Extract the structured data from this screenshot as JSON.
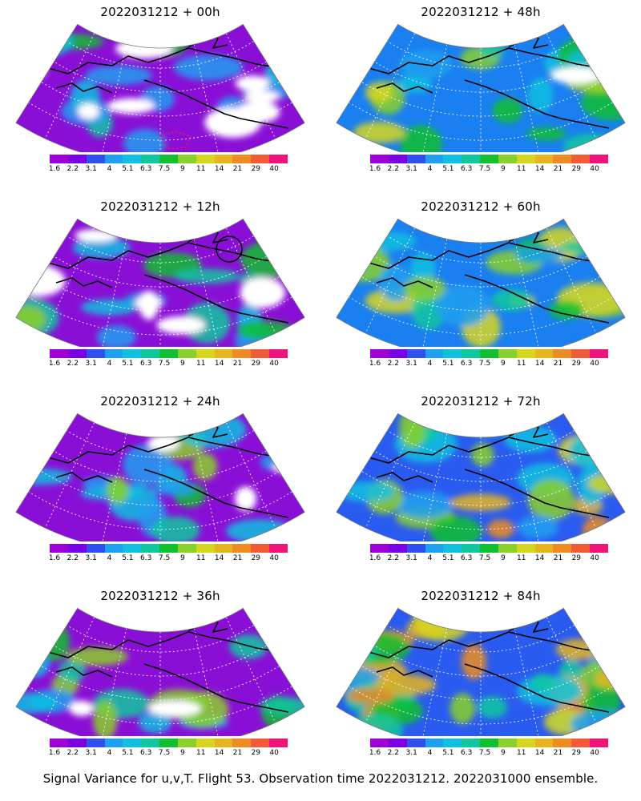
{
  "panels": [
    {
      "title": "2022031212 + 00h",
      "bg": "#8a0fd6",
      "blank": 0.24,
      "hot": 0.15,
      "marker": "dotted-contour"
    },
    {
      "title": "2022031212 + 48h",
      "bg": "#1a7ff0",
      "blank": 0.02,
      "hot": 0.45,
      "marker": "none"
    },
    {
      "title": "2022031212 + 12h",
      "bg": "#8a0fd6",
      "blank": 0.14,
      "hot": 0.25,
      "marker": "circle"
    },
    {
      "title": "2022031212 + 60h",
      "bg": "#1a7ff0",
      "blank": 0.0,
      "hot": 0.5,
      "marker": "none"
    },
    {
      "title": "2022031212 + 24h",
      "bg": "#8a0fd6",
      "blank": 0.08,
      "hot": 0.3,
      "marker": "none"
    },
    {
      "title": "2022031212 + 72h",
      "bg": "#2a5bf0",
      "blank": 0.0,
      "hot": 0.75,
      "marker": "none"
    },
    {
      "title": "2022031212 + 36h",
      "bg": "#8a0fd6",
      "blank": 0.04,
      "hot": 0.35,
      "marker": "none"
    },
    {
      "title": "2022031212 + 84h",
      "bg": "#2a5bf0",
      "blank": 0.0,
      "hot": 0.85,
      "marker": "none"
    }
  ],
  "colorbar": {
    "colors": [
      "#a000d8",
      "#7a00e6",
      "#2f4ff0",
      "#1ea0f0",
      "#10c0e0",
      "#10c8a0",
      "#10c030",
      "#8ad02a",
      "#d6d61e",
      "#e6b41e",
      "#ee8c22",
      "#f25a3a",
      "#f0147a"
    ],
    "ticks": [
      "1.6",
      "2.2",
      "3.1",
      "4",
      "5.1",
      "6.3",
      "7.5",
      "9",
      "11",
      "14",
      "21",
      "29",
      "40"
    ]
  },
  "caption": "Signal Variance for u,v,T. Flight 53. Observation time 2022031212. 2022031000 ensemble."
}
